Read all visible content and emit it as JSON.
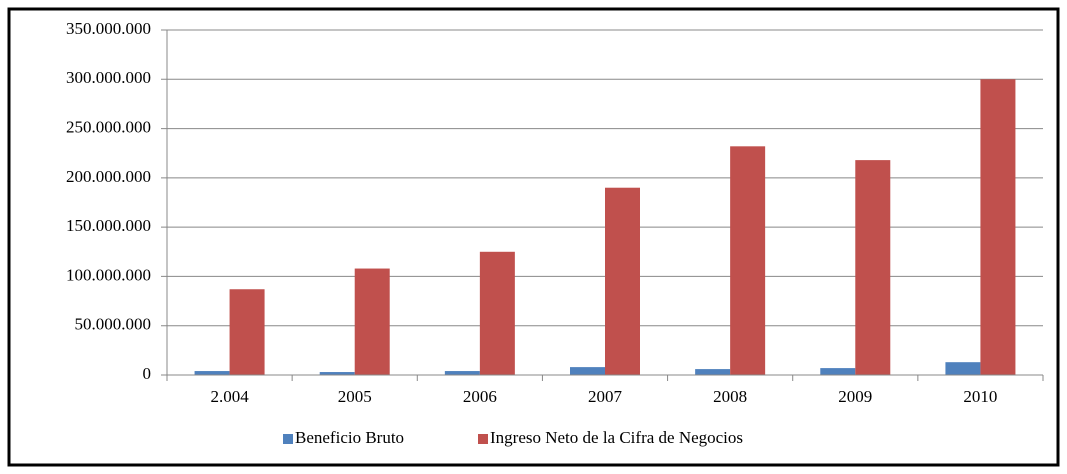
{
  "chart_data": {
    "type": "bar",
    "categories": [
      "2.004",
      "2005",
      "2006",
      "2007",
      "2008",
      "2009",
      "2010"
    ],
    "series": [
      {
        "name": "Beneficio Bruto",
        "color": "#4f81bd",
        "values": [
          4000000,
          3000000,
          4000000,
          8000000,
          6000000,
          7000000,
          13000000
        ]
      },
      {
        "name": "Ingreso Neto de la Cifra de Negocios",
        "color": "#c0504d",
        "values": [
          87000000,
          108000000,
          125000000,
          190000000,
          232000000,
          218000000,
          300000000
        ]
      }
    ],
    "ylim": [
      0,
      350000000
    ],
    "yticks": [
      0,
      {
        "value": 50000000,
        "label": "50.000.000"
      },
      {
        "value": 100000000,
        "label": "100.000.000"
      },
      {
        "value": 150000000,
        "label": "150.000.000"
      },
      {
        "value": 200000000,
        "label": "200.000.000"
      },
      {
        "value": 250000000,
        "label": "250.000.000"
      },
      {
        "value": 300000000,
        "label": "300.000.000"
      },
      {
        "value": 350000000,
        "label": "350.000.000"
      }
    ],
    "grid": true,
    "legend": "bottom"
  }
}
